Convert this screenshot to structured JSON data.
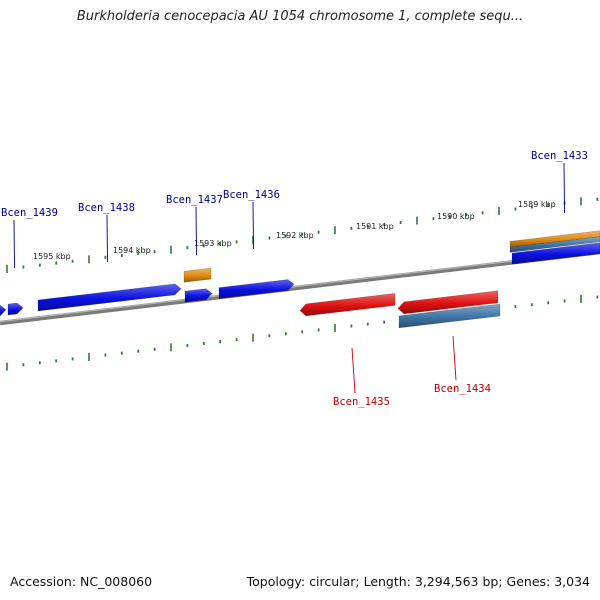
{
  "title": "Burkholderia cenocepacia AU 1054 chromosome 1, complete sequ...",
  "footer": {
    "accession": "Accession: NC_008060",
    "stats": "Topology: circular; Length: 3,294,563 bp; Genes: 3,034"
  },
  "colors": {
    "backbone": "#7a7a7a",
    "tick": "#2e7d32",
    "forward_gene": "#0a10e0",
    "reverse_gene": "#e01010",
    "orange_feature": "#e08a10",
    "steel_feature": "#3d74a8",
    "forward_label": "#00008b",
    "reverse_label": "#c00000"
  },
  "scale_labels": [
    "1595 kbp",
    "1594 kbp",
    "1593 kbp",
    "1592 kbp",
    "1591 kbp",
    "1590 kbp",
    "1589 kbp"
  ],
  "gene_labels": {
    "forward": [
      "Bcen_1439",
      "Bcen_1438",
      "Bcen_1437",
      "Bcen_1436",
      "Bcen_1433"
    ],
    "reverse": [
      "Bcen_1435",
      "Bcen_1434"
    ]
  }
}
